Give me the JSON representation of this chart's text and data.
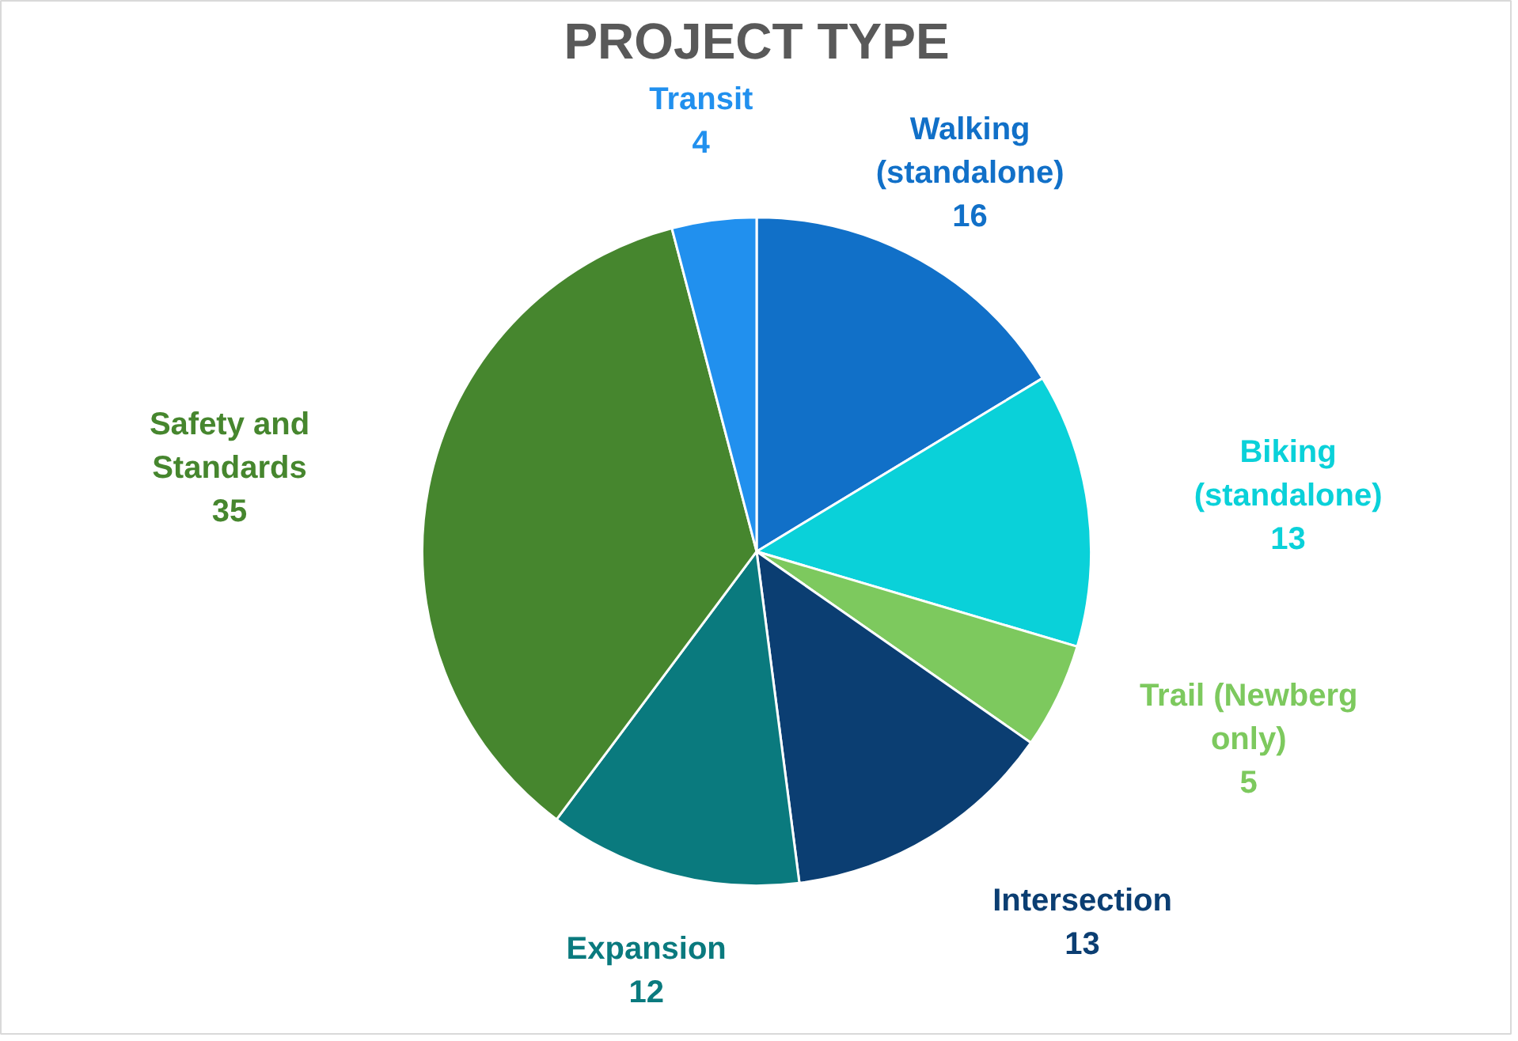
{
  "chart_data": {
    "type": "pie",
    "title": "PROJECT TYPE",
    "categories": [
      "Walking (standalone)",
      "Biking (standalone)",
      "Trail (Newberg only)",
      "Intersection",
      "Expansion",
      "Safety and Standards",
      "Transit"
    ],
    "values": [
      16,
      13,
      5,
      13,
      12,
      35,
      4
    ],
    "colors": [
      "#1170c8",
      "#0ad1d9",
      "#7dc95e",
      "#0b3e72",
      "#0a7a7e",
      "#46862e",
      "#2190ee"
    ],
    "data_labels": true
  }
}
